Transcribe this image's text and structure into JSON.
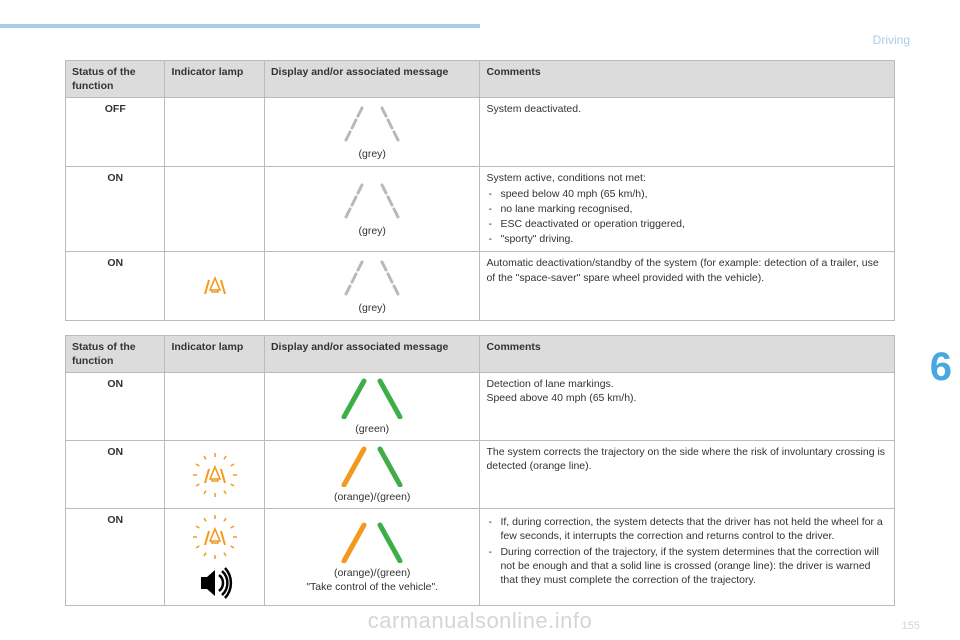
{
  "header": {
    "section": "Driving",
    "chapter": "6"
  },
  "watermark": "carmanualsonline.info",
  "page_number": "155",
  "colors": {
    "accent_blue": "#a8ccea",
    "chapter_blue": "#4aa8e0",
    "th_bg": "#dcdcdc",
    "border": "#bbbbbb",
    "lane_grey": "#b8b8b8",
    "lane_green": "#3fae49",
    "lane_orange": "#f39a1e",
    "icon_orange": "#f39a1e",
    "black": "#000000"
  },
  "table1": {
    "columns": [
      "Status of the function",
      "Indicator lamp",
      "Display and/or associated message",
      "Comments"
    ],
    "rows": [
      {
        "status": "OFF",
        "lamp": null,
        "display": {
          "left": "grey",
          "right": "grey",
          "caption": "(grey)"
        },
        "comment_text": "System deactivated."
      },
      {
        "status": "ON",
        "lamp": null,
        "display": {
          "left": "grey",
          "right": "grey",
          "caption": "(grey)"
        },
        "comment_lead": "System active, conditions not met:",
        "comment_items": [
          "speed below 40 mph (65 km/h),",
          "no lane marking recognised,",
          "ESC deactivated or operation triggered,",
          "\"sporty\" driving."
        ]
      },
      {
        "status": "ON",
        "lamp": {
          "type": "lane-assist",
          "glow": false
        },
        "display": {
          "left": "grey",
          "right": "grey",
          "caption": "(grey)"
        },
        "comment_text": "Automatic deactivation/standby of the system (for example: detection of a trailer, use of the \"space-saver\" spare wheel provided with the vehicle)."
      }
    ]
  },
  "table2": {
    "columns": [
      "Status of the function",
      "Indicator lamp",
      "Display and/or associated message",
      "Comments"
    ],
    "rows": [
      {
        "status": "ON",
        "lamp": null,
        "display": {
          "left": "green",
          "right": "green",
          "caption": "(green)"
        },
        "comment_text": "Detection of lane markings.\nSpeed above 40 mph (65 km/h)."
      },
      {
        "status": "ON",
        "lamp": {
          "type": "lane-assist",
          "glow": true
        },
        "display": {
          "left": "orange",
          "right": "green",
          "caption": "(orange)/(green)"
        },
        "comment_text": "The system corrects the trajectory on the side where the risk of involuntary crossing is detected (orange line)."
      },
      {
        "status": "ON",
        "lamp": {
          "type": "lane-assist-sound",
          "glow": true
        },
        "display": {
          "left": "orange",
          "right": "green",
          "caption": "(orange)/(green)",
          "message": "\"Take control of the vehicle\"."
        },
        "comment_items": [
          "If, during correction, the system detects that the driver has not held the wheel for a few seconds, it interrupts the correction and returns control to the driver.",
          "During correction of the trajectory, if the system determines that the correction will not be enough and that a solid line is crossed (orange line): the driver is warned that they must complete the correction of the trajectory."
        ]
      }
    ]
  }
}
